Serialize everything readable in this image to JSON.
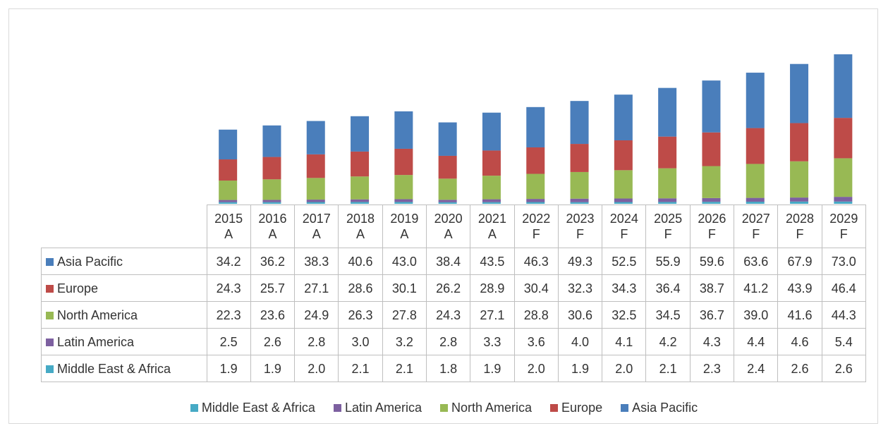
{
  "chart_data": {
    "type": "stacked_bar",
    "categories": [
      "2015 A",
      "2016 A",
      "2017 A",
      "2018 A",
      "2019 A",
      "2020 A",
      "2021 A",
      "2022 F",
      "2023 F",
      "2024 F",
      "2025 F",
      "2026 F",
      "2027 F",
      "2028 F",
      "2029 F"
    ],
    "series": [
      {
        "name": "Asia Pacific",
        "color": "#4a7ebb",
        "values": [
          34.2,
          36.2,
          38.3,
          40.6,
          43.0,
          38.4,
          43.5,
          46.3,
          49.3,
          52.5,
          55.9,
          59.6,
          63.6,
          67.9,
          73.0
        ],
        "value_labels": [
          "34.2",
          "36.2",
          "38.3",
          "40.6",
          "43.0",
          "38.4",
          "43.5",
          "46.3",
          "49.3",
          "52.5",
          "55.9",
          "59.6",
          "63.6",
          "67.9",
          "73.0"
        ]
      },
      {
        "name": "Europe",
        "color": "#be4b48",
        "values": [
          24.3,
          25.7,
          27.1,
          28.6,
          30.1,
          26.2,
          28.9,
          30.4,
          32.3,
          34.3,
          36.4,
          38.7,
          41.2,
          43.9,
          46.4
        ],
        "value_labels": [
          "24.3",
          "25.7",
          "27.1",
          "28.6",
          "30.1",
          "26.2",
          "28.9",
          "30.4",
          "32.3",
          "34.3",
          "36.4",
          "38.7",
          "41.2",
          "43.9",
          "46.4"
        ]
      },
      {
        "name": "North America",
        "color": "#98b954",
        "values": [
          22.3,
          23.6,
          24.9,
          26.3,
          27.8,
          24.3,
          27.1,
          28.8,
          30.6,
          32.5,
          34.5,
          36.7,
          39.0,
          41.6,
          44.3
        ],
        "value_labels": [
          "22.3",
          "23.6",
          "24.9",
          "26.3",
          "27.8",
          "24.3",
          "27.1",
          "28.8",
          "30.6",
          "32.5",
          "34.5",
          "36.7",
          "39.0",
          "41.6",
          "44.3"
        ]
      },
      {
        "name": "Latin America",
        "color": "#7d60a0",
        "values": [
          2.5,
          2.6,
          2.8,
          3.0,
          3.2,
          2.8,
          3.3,
          3.6,
          4.0,
          4.1,
          4.2,
          4.3,
          4.4,
          4.6,
          5.4
        ],
        "value_labels": [
          "2.5",
          "2.6",
          "2.8",
          "3.0",
          "3.2",
          "2.8",
          "3.3",
          "3.6",
          "4.0",
          "4.1",
          "4.2",
          "4.3",
          "4.4",
          "4.6",
          "5.4"
        ]
      },
      {
        "name": "Middle East & Africa",
        "color": "#46aac5",
        "values": [
          1.9,
          1.9,
          2.0,
          2.1,
          2.1,
          1.8,
          1.9,
          2.0,
          1.9,
          2.0,
          2.1,
          2.3,
          2.4,
          2.6,
          2.6
        ],
        "value_labels": [
          "1.9",
          "1.9",
          "2.0",
          "2.1",
          "2.1",
          "1.8",
          "1.9",
          "2.0",
          "1.9",
          "2.0",
          "2.1",
          "2.3",
          "2.4",
          "2.6",
          "2.6"
        ]
      }
    ]
  }
}
